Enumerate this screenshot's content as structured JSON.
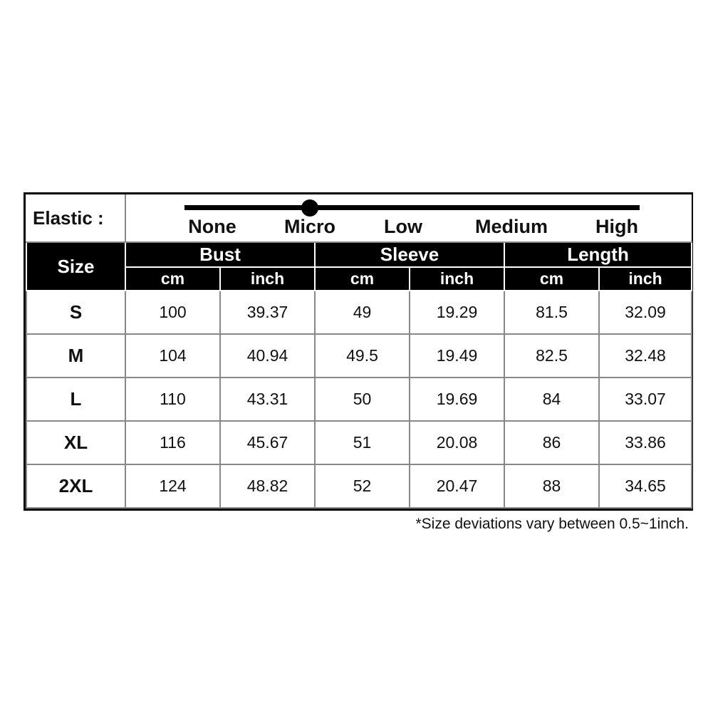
{
  "elastic": {
    "label": "Elastic :",
    "levels": [
      "None",
      "Micro",
      "Low",
      "Medium",
      "High"
    ],
    "selected": "Micro",
    "selected_index": 1
  },
  "header": {
    "size": "Size",
    "groups": [
      "Bust",
      "Sleeve",
      "Length"
    ],
    "units": [
      "cm",
      "inch",
      "cm",
      "inch",
      "cm",
      "inch"
    ]
  },
  "rows": [
    {
      "size": "S",
      "values": [
        "100",
        "39.37",
        "49",
        "19.29",
        "81.5",
        "32.09"
      ]
    },
    {
      "size": "M",
      "values": [
        "104",
        "40.94",
        "49.5",
        "19.49",
        "82.5",
        "32.48"
      ]
    },
    {
      "size": "L",
      "values": [
        "110",
        "43.31",
        "50",
        "19.69",
        "84",
        "33.07"
      ]
    },
    {
      "size": "XL",
      "values": [
        "116",
        "45.67",
        "51",
        "20.08",
        "86",
        "33.86"
      ]
    },
    {
      "size": "2XL",
      "values": [
        "124",
        "48.82",
        "52",
        "20.47",
        "88",
        "34.65"
      ]
    }
  ],
  "note": "*Size deviations vary between 0.5~1inch."
}
